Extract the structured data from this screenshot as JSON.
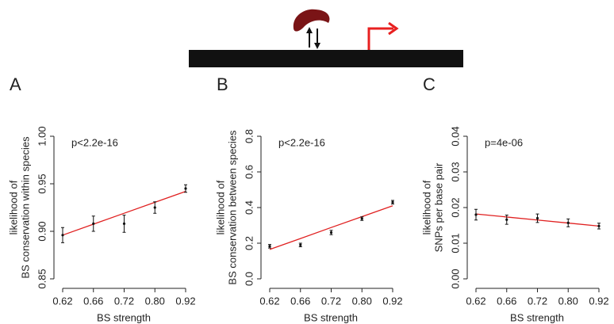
{
  "chart_data": [
    {
      "type": "errorbar",
      "label": "A",
      "annotation": "p<2.2e-16",
      "x_label": "BS strength",
      "y_label": [
        "likelihood of",
        "BS conservation within species"
      ],
      "categories": [
        "0.62",
        "0.66",
        "0.72",
        "0.80",
        "0.92"
      ],
      "points": {
        "color": "#111111",
        "values": [
          0.896,
          0.908,
          0.908,
          0.925,
          0.945
        ],
        "errors": [
          0.008,
          0.008,
          0.009,
          0.006,
          0.004
        ]
      },
      "fit": {
        "color": "#e02020",
        "values": [
          0.896,
          0.9075,
          0.919,
          0.9305,
          0.942
        ]
      },
      "ylim": [
        0.85,
        1.0
      ],
      "yticks": [
        0.85,
        {
          "value": 0.9,
          "label": "0.90"
        },
        0.95,
        {
          "value": 1.0,
          "label": "1.00"
        }
      ]
    },
    {
      "type": "errorbar",
      "label": "B",
      "annotation": "p<2.2e-16",
      "x_label": "BS strength",
      "y_label": [
        "likelihood of",
        "BS conservation between species"
      ],
      "categories": [
        "0.62",
        "0.66",
        "0.72",
        "0.80",
        "0.92"
      ],
      "points": {
        "color": "#111111",
        "values": [
          0.183,
          0.19,
          0.26,
          0.338,
          0.43
        ],
        "errors": [
          0.01,
          0.01,
          0.012,
          0.01,
          0.01
        ]
      },
      "fit": {
        "color": "#e02020",
        "values": [
          0.165,
          0.226,
          0.288,
          0.349,
          0.41
        ]
      },
      "ylim": [
        0.0,
        0.8
      ],
      "yticks": [
        {
          "value": 0.0,
          "label": "0.0"
        },
        0.2,
        0.4,
        0.6,
        0.8
      ]
    },
    {
      "type": "errorbar",
      "label": "C",
      "annotation": "p=4e-06",
      "x_label": "BS strength",
      "y_label": [
        "likelihood of",
        "SNPs per base pair"
      ],
      "categories": [
        "0.62",
        "0.66",
        "0.72",
        "0.80",
        "0.92"
      ],
      "points": {
        "color": "#111111",
        "values": [
          0.018,
          0.0166,
          0.017,
          0.0157,
          0.0148
        ],
        "errors": [
          0.0015,
          0.0013,
          0.0012,
          0.0011,
          0.0008
        ]
      },
      "fit": {
        "color": "#e02020",
        "values": [
          0.0182,
          0.01735,
          0.0165,
          0.01565,
          0.0148
        ]
      },
      "ylim": [
        0.0,
        0.04
      ],
      "yticks": [
        {
          "value": 0.0,
          "label": "0.00"
        },
        0.01,
        0.02,
        0.03,
        0.04
      ]
    }
  ]
}
